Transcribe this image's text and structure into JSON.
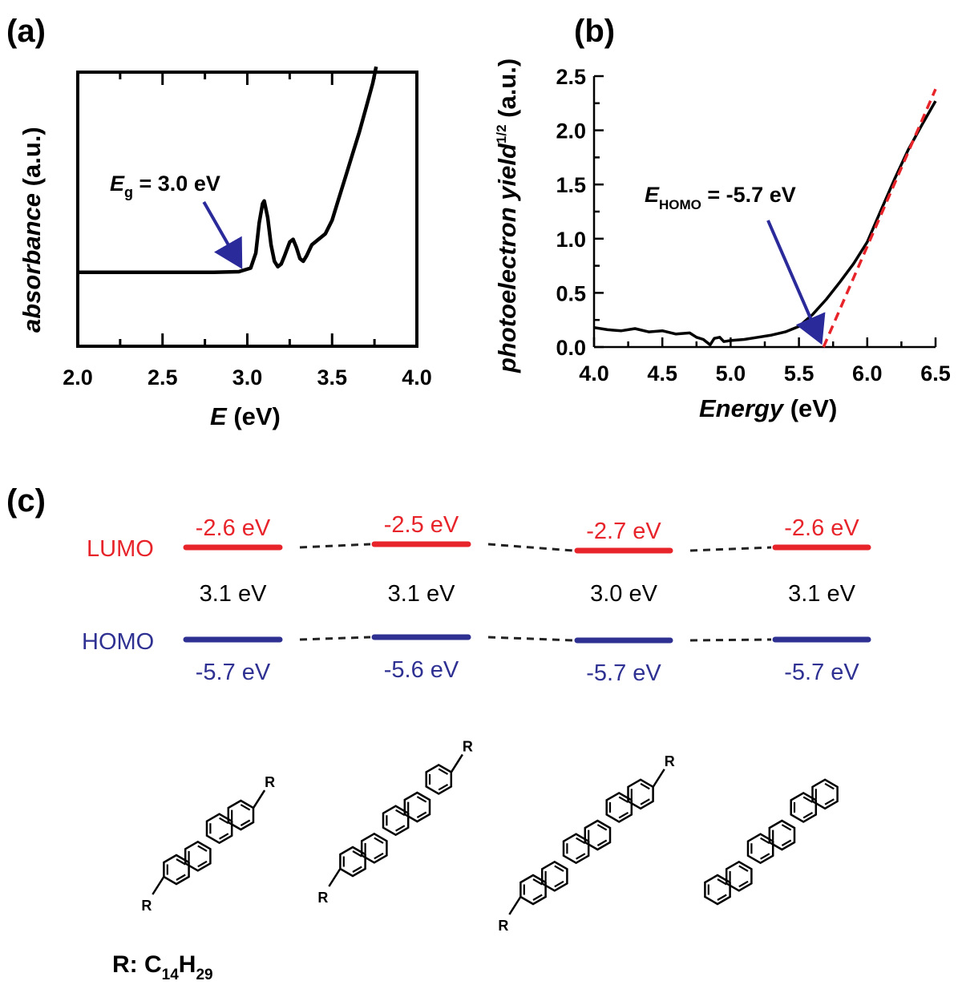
{
  "colors": {
    "lumo": "#e8242b",
    "homo": "#2e3192",
    "arrow": "#2b2a9a",
    "fit": "#e8242b",
    "text": "#000000"
  },
  "panels": {
    "a": "(a)",
    "b": "(b)",
    "c": "(c)"
  },
  "chart_data": [
    {
      "type": "line",
      "xlabel": "E",
      "xlabel_unit": "(eV)",
      "ylabel": "absorbance",
      "ylabel_unit": "(a.u.)",
      "xlim": [
        2.0,
        4.0
      ],
      "xticks": [
        "2.0",
        "2.5",
        "3.0",
        "3.5",
        "4.0"
      ],
      "y_ticks_labeled": false,
      "series": [
        {
          "x": [
            2.0,
            2.3,
            2.6,
            2.8,
            2.95,
            3.02,
            3.05,
            3.07,
            3.09,
            3.1,
            3.12,
            3.14,
            3.16,
            3.18,
            3.2,
            3.22,
            3.25,
            3.27,
            3.29,
            3.31,
            3.33,
            3.35,
            3.38,
            3.42,
            3.46,
            3.5,
            3.54,
            3.58,
            3.62,
            3.66,
            3.7,
            3.74,
            3.76
          ],
          "y": [
            0.27,
            0.27,
            0.27,
            0.27,
            0.272,
            0.285,
            0.34,
            0.45,
            0.52,
            0.53,
            0.47,
            0.37,
            0.31,
            0.29,
            0.3,
            0.33,
            0.38,
            0.39,
            0.36,
            0.32,
            0.31,
            0.33,
            0.37,
            0.39,
            0.41,
            0.46,
            0.54,
            0.62,
            0.7,
            0.78,
            0.87,
            0.96,
            1.02
          ]
        }
      ],
      "annotation": {
        "sym": "E",
        "sub": "g",
        "text": " = 3.0 eV",
        "points_to_x": 2.98
      }
    },
    {
      "type": "line",
      "xlabel": "Energy",
      "xlabel_unit": "(eV)",
      "ylabel": "photoelectron yield",
      "ylabel_sup": "1/2",
      "ylabel_unit": "(a.u.)",
      "xlim": [
        4.0,
        6.5
      ],
      "ylim": [
        0.0,
        2.5
      ],
      "xticks": [
        "4.0",
        "4.5",
        "5.0",
        "5.5",
        "6.0",
        "6.5"
      ],
      "yticks": [
        "0.0",
        "0.5",
        "1.0",
        "1.5",
        "2.0",
        "2.5"
      ],
      "series": [
        {
          "x": [
            4.0,
            4.1,
            4.2,
            4.3,
            4.4,
            4.5,
            4.6,
            4.7,
            4.75,
            4.8,
            4.85,
            4.88,
            4.92,
            4.95,
            5.0,
            5.1,
            5.2,
            5.3,
            5.4,
            5.5,
            5.6,
            5.7,
            5.8,
            5.9,
            6.0,
            6.1,
            6.2,
            6.3,
            6.4,
            6.5
          ],
          "y": [
            0.18,
            0.16,
            0.15,
            0.17,
            0.14,
            0.15,
            0.12,
            0.13,
            0.09,
            0.07,
            0.02,
            0.08,
            0.09,
            0.05,
            0.06,
            0.07,
            0.09,
            0.11,
            0.14,
            0.19,
            0.3,
            0.44,
            0.6,
            0.77,
            0.97,
            1.26,
            1.55,
            1.82,
            2.05,
            2.27
          ]
        }
      ],
      "fit_line": {
        "x": [
          5.68,
          6.5
        ],
        "y": [
          0.0,
          2.38
        ]
      },
      "annotation": {
        "sym": "E",
        "sub": "HOMO",
        "text": " = -5.7 eV",
        "points_to_x": 5.68
      }
    }
  ],
  "energy_diagram": {
    "lumo_label": "LUMO",
    "homo_label": "HOMO",
    "compounds": [
      {
        "lumo": "-2.6 eV",
        "gap": "3.1 eV",
        "homo": "-5.7 eV",
        "rings": 4,
        "substituted": true
      },
      {
        "lumo": "-2.5 eV",
        "gap": "3.1 eV",
        "homo": "-5.6 eV",
        "rings": 5,
        "substituted": true
      },
      {
        "lumo": "-2.7 eV",
        "gap": "3.0 eV",
        "homo": "-5.7 eV",
        "rings": 6,
        "substituted": true
      },
      {
        "lumo": "-2.6 eV",
        "gap": "3.1 eV",
        "homo": "-5.7 eV",
        "rings": 6,
        "substituted": false
      }
    ],
    "substituent_symbol": "R",
    "r_def": {
      "prefix": "R: C",
      "sub1": "14",
      "mid": "H",
      "sub2": "29"
    }
  }
}
